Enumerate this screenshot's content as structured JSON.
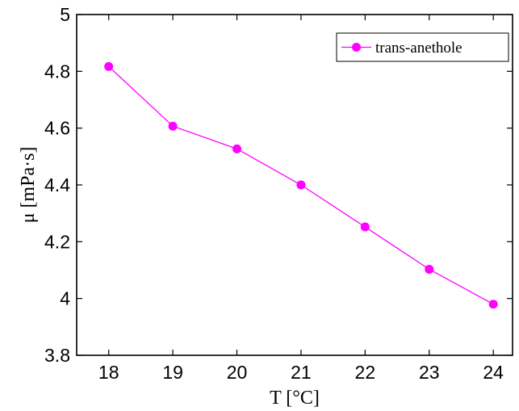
{
  "chart_data": {
    "type": "line",
    "xlabel": "T [°C]",
    "ylabel": "μ [mPa·s]",
    "xlim": [
      17.5,
      24.3
    ],
    "ylim": [
      3.8,
      5.0
    ],
    "xticks": [
      "18",
      "19",
      "20",
      "21",
      "22",
      "23",
      "24"
    ],
    "yticks": [
      "3.8",
      "4",
      "4.2",
      "4.4",
      "4.6",
      "4.8",
      "5"
    ],
    "grid": false,
    "legend_position": "top-right",
    "series": [
      {
        "name": "trans-anethole",
        "color": "#ff00ff",
        "marker": "circle",
        "x": [
          18,
          19,
          20,
          21,
          22,
          23,
          24
        ],
        "y": [
          4.817,
          4.607,
          4.527,
          4.4,
          4.252,
          4.103,
          3.98
        ]
      }
    ]
  }
}
